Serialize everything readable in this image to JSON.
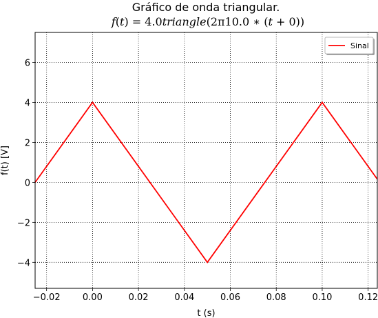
{
  "chart_data": {
    "type": "line",
    "title": "Gráfico de onda triangular.",
    "subtitle": {
      "fn": "f",
      "var": "t",
      "equals": "= 4.0",
      "fname": "triangle",
      "arg": "(2π10.0 ∗ (",
      "arg_var": "t",
      "arg_end": " + 0))"
    },
    "xlabel": "t (s)",
    "ylabel": "f(t) [V]",
    "xlim": [
      -0.025,
      0.124
    ],
    "ylim": [
      -5.3,
      7.5
    ],
    "xticks": [
      -0.02,
      0.0,
      0.02,
      0.04,
      0.06,
      0.08,
      0.1,
      0.12
    ],
    "xtick_labels": [
      "−0.02",
      "0.00",
      "0.02",
      "0.04",
      "0.06",
      "0.08",
      "0.10",
      "0.12"
    ],
    "yticks": [
      -4,
      -2,
      0,
      2,
      4,
      6
    ],
    "ytick_labels": [
      "−4",
      "−2",
      "0",
      "2",
      "4",
      "6"
    ],
    "grid": true,
    "legend": {
      "placement": "top-right",
      "entries": [
        "Sinal"
      ]
    },
    "series": [
      {
        "name": "Sinal",
        "color": "#ff0000",
        "x": [
          -0.025,
          0.0,
          0.05,
          0.1,
          0.124
        ],
        "y": [
          0.0,
          4.0,
          -4.0,
          4.0,
          0.16
        ]
      }
    ]
  }
}
